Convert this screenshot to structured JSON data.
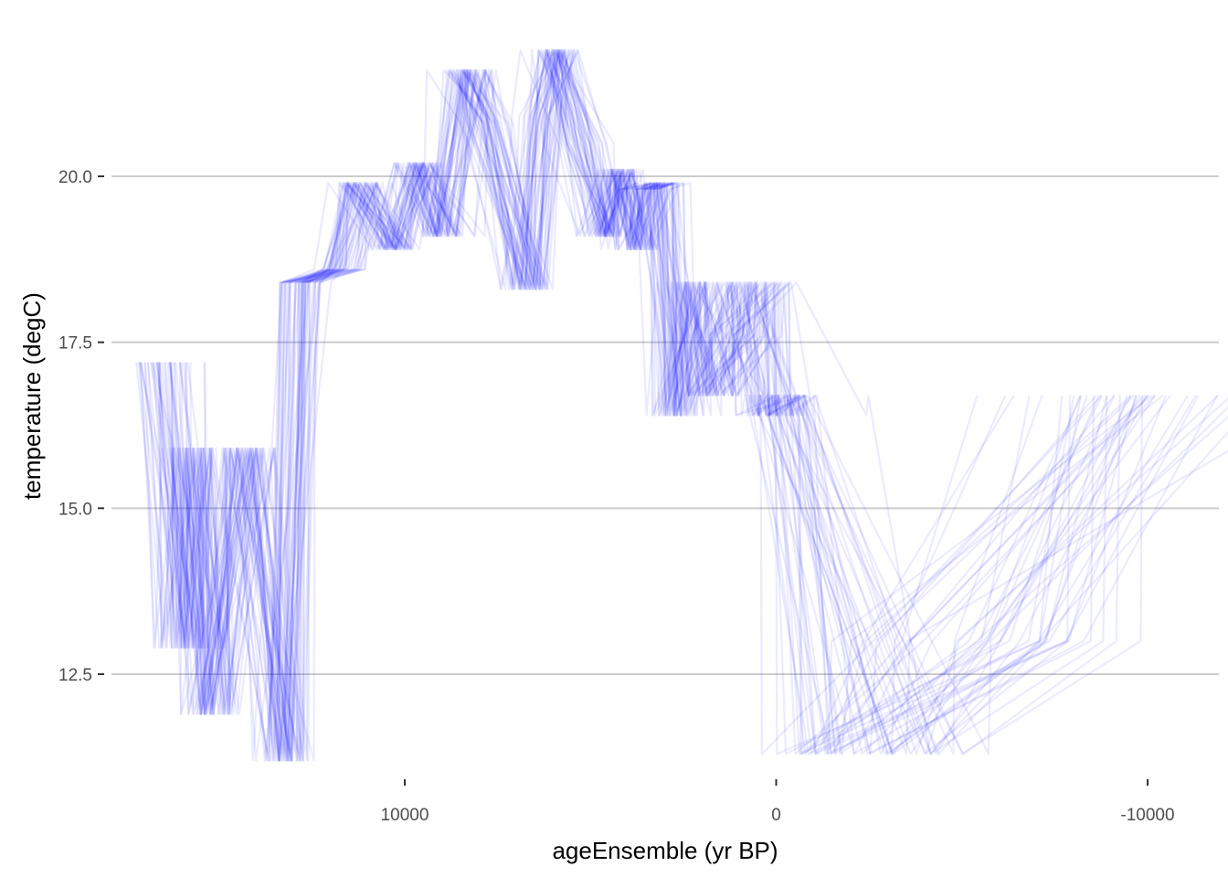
{
  "chart_data": {
    "type": "line",
    "title": "",
    "xlabel": "ageEnsemble (yr BP)",
    "ylabel": "temperature (degC)",
    "x_reversed": true,
    "xlim": [
      17000,
      -11500
    ],
    "ylim": [
      11.0,
      22.0
    ],
    "x_ticks": [
      10000,
      0,
      -10000
    ],
    "x_tick_labels": [
      "10000",
      "0",
      "-10000"
    ],
    "y_ticks": [
      12.5,
      15.0,
      17.5,
      20.0
    ],
    "y_tick_labels": [
      "12.5",
      "15.0",
      "17.5",
      "20.0"
    ],
    "grid": "horizontal major",
    "legend": "none",
    "line_color": "#0000ff",
    "line_alpha": 0.08,
    "n_ensemble_members": 50,
    "temperature_series": [
      17.2,
      12.9,
      15.9,
      11.9,
      15.9,
      11.2,
      18.4,
      18.6,
      19.9,
      18.9,
      20.2,
      19.1,
      21.6,
      20.8,
      18.3,
      20.9,
      21.9,
      20.5,
      19.1,
      20.1,
      18.9,
      19.8,
      19.9,
      16.4,
      18.4,
      16.7,
      17.6,
      18.4,
      16.4,
      16.7,
      11.3,
      13.0,
      16.7
    ],
    "median_age_series": [
      16550,
      15950,
      15750,
      15300,
      14300,
      13200,
      12950,
      11800,
      11300,
      10350,
      9650,
      8950,
      8350,
      7850,
      6700,
      6350,
      6000,
      5250,
      4700,
      4250,
      3850,
      3550,
      3150,
      2750,
      2300,
      2000,
      1200,
      700,
      400,
      100,
      -2000,
      -5500,
      -8800
    ]
  }
}
